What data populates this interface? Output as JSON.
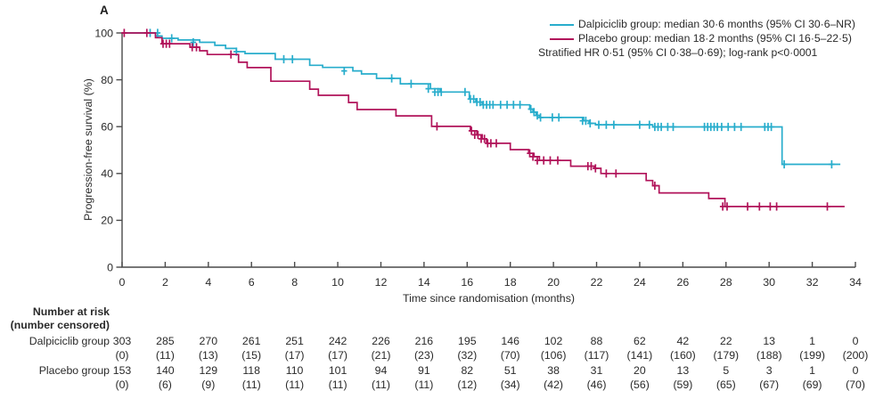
{
  "panel_label": "A",
  "colors": {
    "teal": "#28ADCC",
    "crimson": "#B1135A",
    "axis": "#4a4a4a",
    "text": "#2a2a2a"
  },
  "legend": {
    "rows": [
      {
        "label": "Dalpiciclib group: median 30·6 months (95% CI 30·6–NR)"
      },
      {
        "label": "Placebo group: median 18·2 months (95% CI 16·5–22·5)"
      },
      {
        "label": "Stratified HR 0·51 (95% CI 0·38–0·69); log-rank p<0·0001"
      }
    ]
  },
  "chart_data": {
    "type": "line",
    "subtype": "kaplan-meier-step",
    "title": "A",
    "xlabel": "Time since randomisation (months)",
    "ylabel": "Progression-free survival (%)",
    "xlim": [
      0,
      34
    ],
    "ylim": [
      0,
      100
    ],
    "x_ticks": [
      0,
      2,
      4,
      6,
      8,
      10,
      12,
      14,
      16,
      18,
      20,
      22,
      24,
      26,
      28,
      30,
      32,
      34
    ],
    "y_ticks": [
      0,
      20,
      40,
      60,
      80,
      100
    ],
    "grid": false,
    "legend_position": "top-right",
    "series": [
      {
        "id": "dalpiciclib",
        "name": "Dalpiciclib group",
        "color": "#28ADCC",
        "median_months": "30·6",
        "ci_95": "30·6–NR",
        "end_month": 33.3,
        "steps": [
          [
            0,
            100
          ],
          [
            1.55,
            98.7
          ],
          [
            1.85,
            97.7
          ],
          [
            2.6,
            97.0
          ],
          [
            3.6,
            96.0
          ],
          [
            4.3,
            94.7
          ],
          [
            4.8,
            93.4
          ],
          [
            5.3,
            92.0
          ],
          [
            5.7,
            91.2
          ],
          [
            7.1,
            88.8
          ],
          [
            8.7,
            86.2
          ],
          [
            9.3,
            85.3
          ],
          [
            10.7,
            83.8
          ],
          [
            11.1,
            82.5
          ],
          [
            11.8,
            80.6
          ],
          [
            12.9,
            78.3
          ],
          [
            14.3,
            76.2
          ],
          [
            14.75,
            74.8
          ],
          [
            16.1,
            71.8
          ],
          [
            16.4,
            70.5
          ],
          [
            16.7,
            69.3
          ],
          [
            18.9,
            67.5
          ],
          [
            19.05,
            66.2
          ],
          [
            19.2,
            64.8
          ],
          [
            19.35,
            63.9
          ],
          [
            21.4,
            62.5
          ],
          [
            21.65,
            61.4
          ],
          [
            21.95,
            60.8
          ],
          [
            24.6,
            59.9
          ],
          [
            30.6,
            43.9
          ]
        ],
        "censor_marks": [
          [
            1.3,
            100
          ],
          [
            1.65,
            100
          ],
          [
            2.3,
            97.7
          ],
          [
            3.3,
            96.0
          ],
          [
            5.3,
            92.0
          ],
          [
            7.5,
            88.8
          ],
          [
            7.9,
            88.8
          ],
          [
            10.3,
            83.8
          ],
          [
            12.5,
            80.6
          ],
          [
            13.4,
            78.3
          ],
          [
            14.2,
            76.2
          ],
          [
            14.5,
            74.8
          ],
          [
            14.65,
            74.8
          ],
          [
            14.8,
            74.8
          ],
          [
            15.9,
            74.8
          ],
          [
            16.15,
            71.8
          ],
          [
            16.3,
            71.8
          ],
          [
            16.45,
            70.5
          ],
          [
            16.6,
            70.5
          ],
          [
            16.75,
            69.3
          ],
          [
            16.9,
            69.3
          ],
          [
            17.05,
            69.3
          ],
          [
            17.2,
            69.3
          ],
          [
            17.55,
            69.3
          ],
          [
            17.85,
            69.3
          ],
          [
            18.15,
            69.3
          ],
          [
            18.45,
            69.3
          ],
          [
            18.95,
            67.5
          ],
          [
            19.1,
            66.2
          ],
          [
            19.25,
            64.8
          ],
          [
            19.4,
            63.9
          ],
          [
            19.95,
            63.9
          ],
          [
            20.25,
            63.9
          ],
          [
            21.35,
            62.5
          ],
          [
            21.5,
            62.5
          ],
          [
            21.7,
            61.4
          ],
          [
            22.1,
            60.8
          ],
          [
            22.45,
            60.8
          ],
          [
            22.8,
            60.8
          ],
          [
            24.0,
            60.8
          ],
          [
            24.45,
            60.8
          ],
          [
            24.7,
            59.9
          ],
          [
            24.85,
            59.9
          ],
          [
            25.0,
            59.9
          ],
          [
            25.3,
            59.9
          ],
          [
            25.55,
            59.9
          ],
          [
            27.0,
            59.9
          ],
          [
            27.15,
            59.9
          ],
          [
            27.3,
            59.9
          ],
          [
            27.45,
            59.9
          ],
          [
            27.6,
            59.9
          ],
          [
            27.8,
            59.9
          ],
          [
            28.1,
            59.9
          ],
          [
            28.4,
            59.9
          ],
          [
            28.7,
            59.9
          ],
          [
            29.8,
            59.9
          ],
          [
            29.95,
            59.9
          ],
          [
            30.1,
            59.9
          ],
          [
            30.7,
            43.9
          ],
          [
            32.9,
            43.9
          ]
        ]
      },
      {
        "id": "placebo",
        "name": "Placebo group",
        "color": "#B1135A",
        "median_months": "18·2",
        "ci_95": "16·5–22·5",
        "end_month": 33.5,
        "steps": [
          [
            0,
            100
          ],
          [
            1.55,
            98.0
          ],
          [
            1.85,
            95.4
          ],
          [
            3.15,
            93.9
          ],
          [
            3.6,
            92.4
          ],
          [
            3.95,
            90.8
          ],
          [
            5.4,
            87.5
          ],
          [
            5.8,
            85.2
          ],
          [
            6.9,
            79.4
          ],
          [
            8.7,
            76.0
          ],
          [
            9.1,
            73.4
          ],
          [
            10.5,
            70.3
          ],
          [
            10.9,
            67.3
          ],
          [
            12.7,
            64.6
          ],
          [
            14.35,
            60.1
          ],
          [
            16.15,
            58.2
          ],
          [
            16.45,
            56.5
          ],
          [
            16.7,
            54.8
          ],
          [
            16.9,
            52.9
          ],
          [
            18.0,
            50.2
          ],
          [
            18.85,
            48.6
          ],
          [
            19.1,
            47.2
          ],
          [
            19.35,
            45.6
          ],
          [
            20.8,
            43.1
          ],
          [
            21.9,
            42.2
          ],
          [
            22.2,
            40.0
          ],
          [
            24.3,
            37.0
          ],
          [
            24.6,
            34.8
          ],
          [
            24.9,
            31.7
          ],
          [
            27.2,
            29.3
          ],
          [
            27.95,
            25.9
          ]
        ],
        "censor_marks": [
          [
            0.1,
            100
          ],
          [
            1.15,
            100
          ],
          [
            1.9,
            95.4
          ],
          [
            2.05,
            95.4
          ],
          [
            2.2,
            95.4
          ],
          [
            3.25,
            93.9
          ],
          [
            3.45,
            93.9
          ],
          [
            5.05,
            90.8
          ],
          [
            14.6,
            60.1
          ],
          [
            16.2,
            58.2
          ],
          [
            16.35,
            56.5
          ],
          [
            16.5,
            56.5
          ],
          [
            16.65,
            54.8
          ],
          [
            16.8,
            54.8
          ],
          [
            16.95,
            52.9
          ],
          [
            17.1,
            52.9
          ],
          [
            17.35,
            52.9
          ],
          [
            18.9,
            48.6
          ],
          [
            19.05,
            47.2
          ],
          [
            19.25,
            45.6
          ],
          [
            19.55,
            45.6
          ],
          [
            19.85,
            45.6
          ],
          [
            20.2,
            45.6
          ],
          [
            21.6,
            43.1
          ],
          [
            21.75,
            43.1
          ],
          [
            21.95,
            42.2
          ],
          [
            22.45,
            40.0
          ],
          [
            22.9,
            40.0
          ],
          [
            24.7,
            34.8
          ],
          [
            27.85,
            25.9
          ],
          [
            28.05,
            25.9
          ],
          [
            29.0,
            25.9
          ],
          [
            29.55,
            25.9
          ],
          [
            30.05,
            25.9
          ],
          [
            30.35,
            25.9
          ],
          [
            32.7,
            25.9
          ]
        ]
      }
    ],
    "hr_note": "Stratified HR 0·51 (95% CI 0·38–0·69); log-rank p<0·0001"
  },
  "risk_table": {
    "header_line1": "Number at risk",
    "header_line2": "(number censored)",
    "months": [
      0,
      2,
      4,
      6,
      8,
      10,
      12,
      14,
      16,
      18,
      20,
      22,
      24,
      26,
      28,
      30,
      32,
      34
    ],
    "rows": [
      {
        "label": "Dalpiciclib group",
        "at_risk": [
          "303",
          "285",
          "270",
          "261",
          "251",
          "242",
          "226",
          "216",
          "195",
          "146",
          "102",
          "88",
          "62",
          "42",
          "22",
          "13",
          "1",
          "0"
        ],
        "censored": [
          "(0)",
          "(11)",
          "(13)",
          "(15)",
          "(17)",
          "(17)",
          "(21)",
          "(23)",
          "(32)",
          "(70)",
          "(106)",
          "(117)",
          "(141)",
          "(160)",
          "(179)",
          "(188)",
          "(199)",
          "(200)"
        ]
      },
      {
        "label": "Placebo group",
        "at_risk": [
          "153",
          "140",
          "129",
          "118",
          "110",
          "101",
          "94",
          "91",
          "82",
          "51",
          "38",
          "31",
          "20",
          "13",
          "5",
          "3",
          "1",
          "0"
        ],
        "censored": [
          "(0)",
          "(6)",
          "(9)",
          "(11)",
          "(11)",
          "(11)",
          "(11)",
          "(11)",
          "(12)",
          "(34)",
          "(42)",
          "(46)",
          "(56)",
          "(59)",
          "(65)",
          "(67)",
          "(69)",
          "(70)"
        ]
      }
    ]
  }
}
